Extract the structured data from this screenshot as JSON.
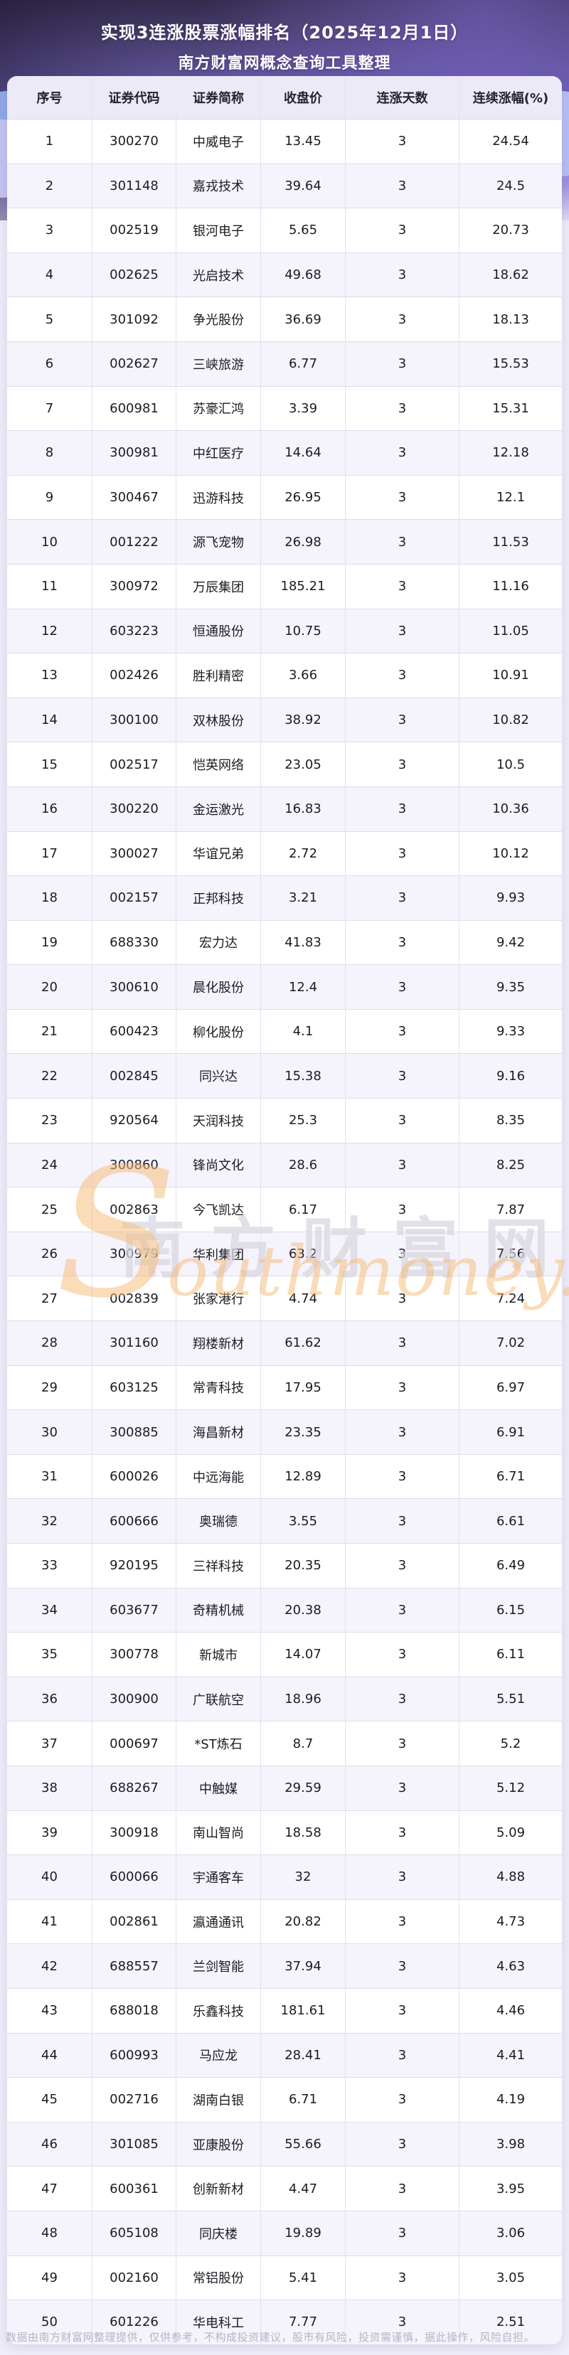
{
  "header": {
    "title_line1": "实现3连涨股票涨幅排名（2025年12月1日）",
    "title_line2": "南方财富网概念查询工具整理"
  },
  "table": {
    "columns": [
      "序号",
      "证券代码",
      "证券简称",
      "收盘价",
      "连涨天数",
      "连续涨幅(%)"
    ],
    "rows": [
      [
        "1",
        "300270",
        "中威电子",
        "13.45",
        "3",
        "24.54"
      ],
      [
        "2",
        "301148",
        "嘉戎技术",
        "39.64",
        "3",
        "24.5"
      ],
      [
        "3",
        "002519",
        "银河电子",
        "5.65",
        "3",
        "20.73"
      ],
      [
        "4",
        "002625",
        "光启技术",
        "49.68",
        "3",
        "18.62"
      ],
      [
        "5",
        "301092",
        "争光股份",
        "36.69",
        "3",
        "18.13"
      ],
      [
        "6",
        "002627",
        "三峡旅游",
        "6.77",
        "3",
        "15.53"
      ],
      [
        "7",
        "600981",
        "苏豪汇鸿",
        "3.39",
        "3",
        "15.31"
      ],
      [
        "8",
        "300981",
        "中红医疗",
        "14.64",
        "3",
        "12.18"
      ],
      [
        "9",
        "300467",
        "迅游科技",
        "26.95",
        "3",
        "12.1"
      ],
      [
        "10",
        "001222",
        "源飞宠物",
        "26.98",
        "3",
        "11.53"
      ],
      [
        "11",
        "300972",
        "万辰集团",
        "185.21",
        "3",
        "11.16"
      ],
      [
        "12",
        "603223",
        "恒通股份",
        "10.75",
        "3",
        "11.05"
      ],
      [
        "13",
        "002426",
        "胜利精密",
        "3.66",
        "3",
        "10.91"
      ],
      [
        "14",
        "300100",
        "双林股份",
        "38.92",
        "3",
        "10.82"
      ],
      [
        "15",
        "002517",
        "恺英网络",
        "23.05",
        "3",
        "10.5"
      ],
      [
        "16",
        "300220",
        "金运激光",
        "16.83",
        "3",
        "10.36"
      ],
      [
        "17",
        "300027",
        "华谊兄弟",
        "2.72",
        "3",
        "10.12"
      ],
      [
        "18",
        "002157",
        "正邦科技",
        "3.21",
        "3",
        "9.93"
      ],
      [
        "19",
        "688330",
        "宏力达",
        "41.83",
        "3",
        "9.42"
      ],
      [
        "20",
        "300610",
        "晨化股份",
        "12.4",
        "3",
        "9.35"
      ],
      [
        "21",
        "600423",
        "柳化股份",
        "4.1",
        "3",
        "9.33"
      ],
      [
        "22",
        "002845",
        "同兴达",
        "15.38",
        "3",
        "9.16"
      ],
      [
        "23",
        "920564",
        "天润科技",
        "25.3",
        "3",
        "8.35"
      ],
      [
        "24",
        "300860",
        "锋尚文化",
        "28.6",
        "3",
        "8.25"
      ],
      [
        "25",
        "002863",
        "今飞凯达",
        "6.17",
        "3",
        "7.87"
      ],
      [
        "26",
        "300979",
        "华利集团",
        "63.2",
        "3",
        "7.56"
      ],
      [
        "27",
        "002839",
        "张家港行",
        "4.74",
        "3",
        "7.24"
      ],
      [
        "28",
        "301160",
        "翔楼新材",
        "61.62",
        "3",
        "7.02"
      ],
      [
        "29",
        "603125",
        "常青科技",
        "17.95",
        "3",
        "6.97"
      ],
      [
        "30",
        "300885",
        "海昌新材",
        "23.35",
        "3",
        "6.91"
      ],
      [
        "31",
        "600026",
        "中远海能",
        "12.89",
        "3",
        "6.71"
      ],
      [
        "32",
        "600666",
        "奥瑞德",
        "3.55",
        "3",
        "6.61"
      ],
      [
        "33",
        "920195",
        "三祥科技",
        "20.35",
        "3",
        "6.49"
      ],
      [
        "34",
        "603677",
        "奇精机械",
        "20.38",
        "3",
        "6.15"
      ],
      [
        "35",
        "300778",
        "新城市",
        "14.07",
        "3",
        "6.11"
      ],
      [
        "36",
        "300900",
        "广联航空",
        "18.96",
        "3",
        "5.51"
      ],
      [
        "37",
        "000697",
        "*ST炼石",
        "8.7",
        "3",
        "5.2"
      ],
      [
        "38",
        "688267",
        "中触媒",
        "29.59",
        "3",
        "5.12"
      ],
      [
        "39",
        "300918",
        "南山智尚",
        "18.58",
        "3",
        "5.09"
      ],
      [
        "40",
        "600066",
        "宇通客车",
        "32",
        "3",
        "4.88"
      ],
      [
        "41",
        "002861",
        "瀛通通讯",
        "20.82",
        "3",
        "4.73"
      ],
      [
        "42",
        "688557",
        "兰剑智能",
        "37.94",
        "3",
        "4.63"
      ],
      [
        "43",
        "688018",
        "乐鑫科技",
        "181.61",
        "3",
        "4.46"
      ],
      [
        "44",
        "600993",
        "马应龙",
        "28.41",
        "3",
        "4.41"
      ],
      [
        "45",
        "002716",
        "湖南白银",
        "6.71",
        "3",
        "4.19"
      ],
      [
        "46",
        "301085",
        "亚康股份",
        "55.66",
        "3",
        "3.98"
      ],
      [
        "47",
        "600361",
        "创新新材",
        "4.47",
        "3",
        "3.95"
      ],
      [
        "48",
        "605108",
        "同庆楼",
        "19.89",
        "3",
        "3.06"
      ],
      [
        "49",
        "002160",
        "常铝股份",
        "5.41",
        "3",
        "3.05"
      ],
      [
        "50",
        "601226",
        "华电科工",
        "7.77",
        "3",
        "2.51"
      ]
    ]
  },
  "watermark": {
    "line1": "南方财富网",
    "line2_initial": "S",
    "line2_rest": "outhmoney.com"
  },
  "footer": {
    "disclaimer": "数据由南方财富网整理提供，仅供参考，不构成投资建议，股市有风险，投资需谨慎，据此操作，风险自担。"
  },
  "colors": {
    "header_purple_dark": "#362e4e",
    "header_purple_mid": "#6b5cb0",
    "header_purple_light": "#a99dde",
    "page_background": "#efeef9",
    "table_header_bg": "#edeaf8",
    "row_stripe_bg": "#f5f3fc",
    "row_border": "#dedcec",
    "watermark_orange": "#f6bc76",
    "watermark_gray": "#aca7bc",
    "footer_text": "#b6b4c4"
  }
}
